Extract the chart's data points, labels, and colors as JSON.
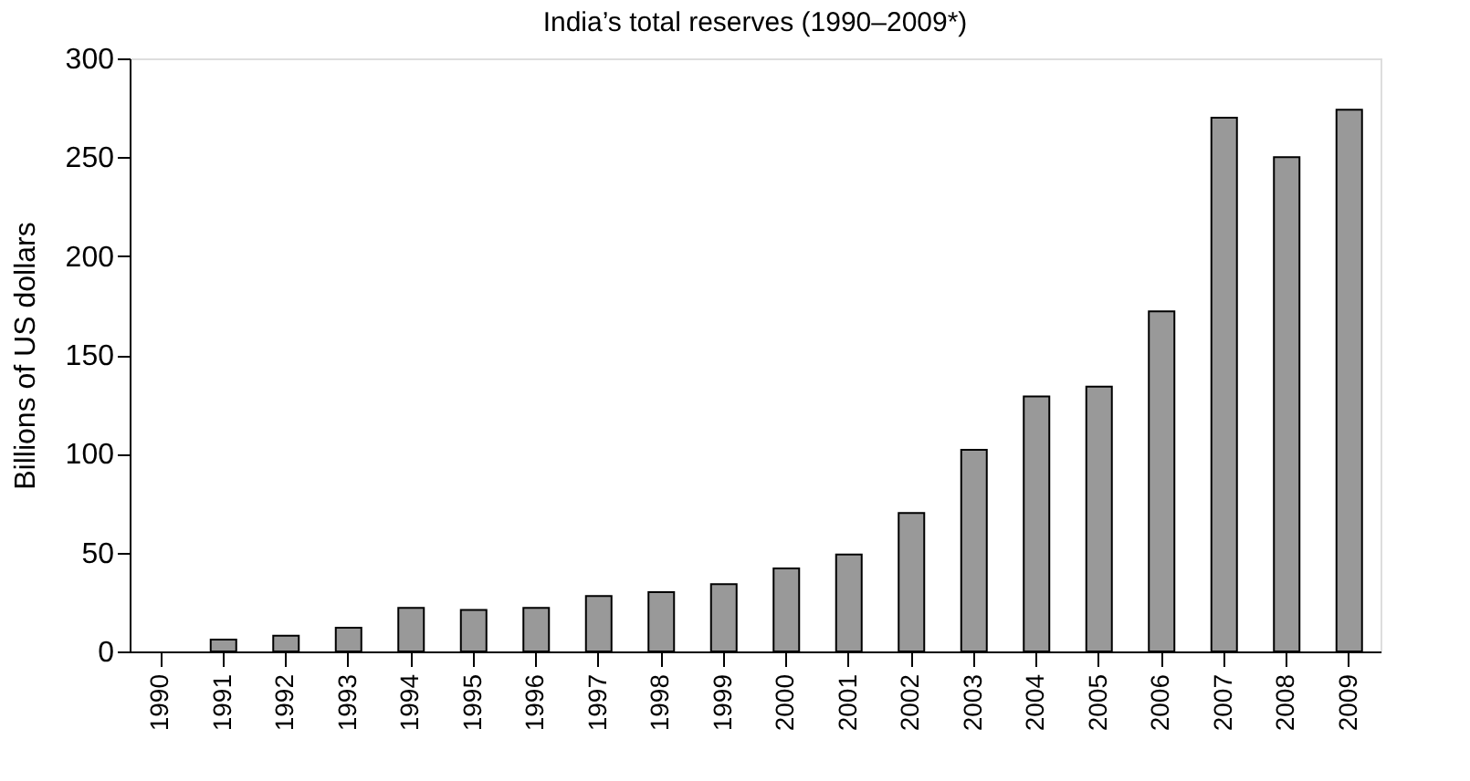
{
  "chart_data": {
    "type": "bar",
    "title": "India’s total reserves (1990–2009*)",
    "ylabel": "Billions  of US dollars",
    "categories": [
      "1990",
      "1991",
      "1992",
      "1993",
      "1994",
      "1995",
      "1996",
      "1997",
      "1998",
      "1999",
      "2000",
      "2001",
      "2002",
      "2003",
      "2004",
      "2005",
      "2006",
      "2007",
      "2008",
      "2009"
    ],
    "values": [
      null,
      6,
      8,
      12,
      22,
      21,
      22,
      28,
      30,
      34,
      42,
      49,
      70,
      102,
      129,
      134,
      172,
      270,
      250,
      274
    ],
    "color": "#999999",
    "ylim": [
      0,
      300
    ],
    "yticks": [
      0,
      50,
      100,
      150,
      200,
      250,
      300
    ],
    "grid": false
  }
}
